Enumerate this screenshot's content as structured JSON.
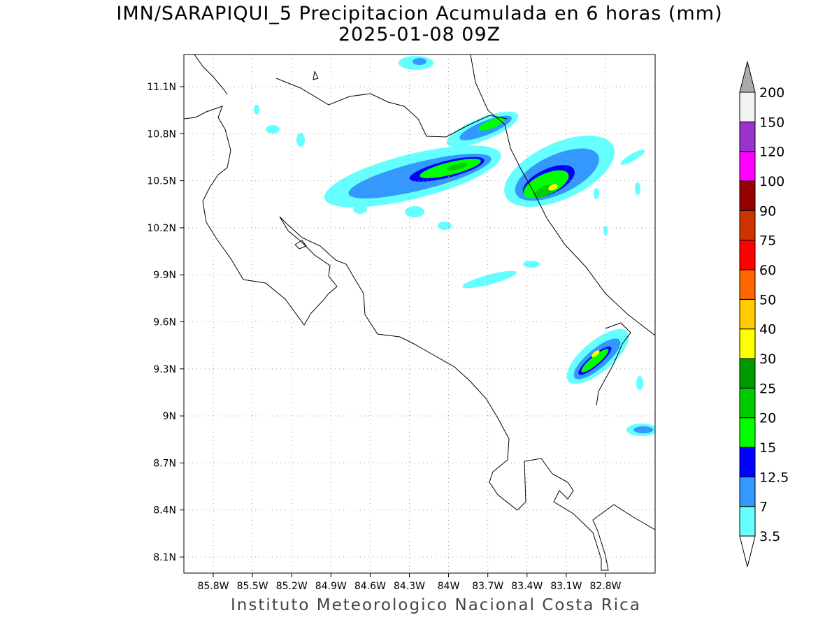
{
  "title": {
    "line1": "IMN/SARAPIQUI_5 Precipitacion Acumulada en 6 horas (mm)",
    "line2": "2025-01-08 09Z"
  },
  "map": {
    "lon_labels": [
      "85.8W",
      "85.5W",
      "85.2W",
      "84.9W",
      "84.6W",
      "84.3W",
      "84W",
      "83.7W",
      "83.4W",
      "83.1W",
      "82.8W"
    ],
    "lat_labels": [
      "11.1N",
      "10.8N",
      "10.5N",
      "10.2N",
      "9.9N",
      "9.6N",
      "9.3N",
      "9N",
      "8.7N",
      "8.4N",
      "8.1N"
    ]
  },
  "colorbar": {
    "levels": [
      "3.5",
      "7",
      "12.5",
      "15",
      "20",
      "25",
      "30",
      "40",
      "50",
      "60",
      "75",
      "90",
      "100",
      "120",
      "150",
      "200"
    ],
    "colors": [
      "#66ffff",
      "#3399ff",
      "#0000ff",
      "#00ff00",
      "#00cc00",
      "#009900",
      "#ffff00",
      "#ffcc00",
      "#ff6600",
      "#ff0000",
      "#cc3300",
      "#990000",
      "#ff00ff",
      "#9933cc",
      "#f2f2f2"
    ],
    "over_color": "#aaaaaa",
    "under_color": "#ffffff"
  },
  "footer": "Instituto Meteorologico Nacional Costa Rica"
}
